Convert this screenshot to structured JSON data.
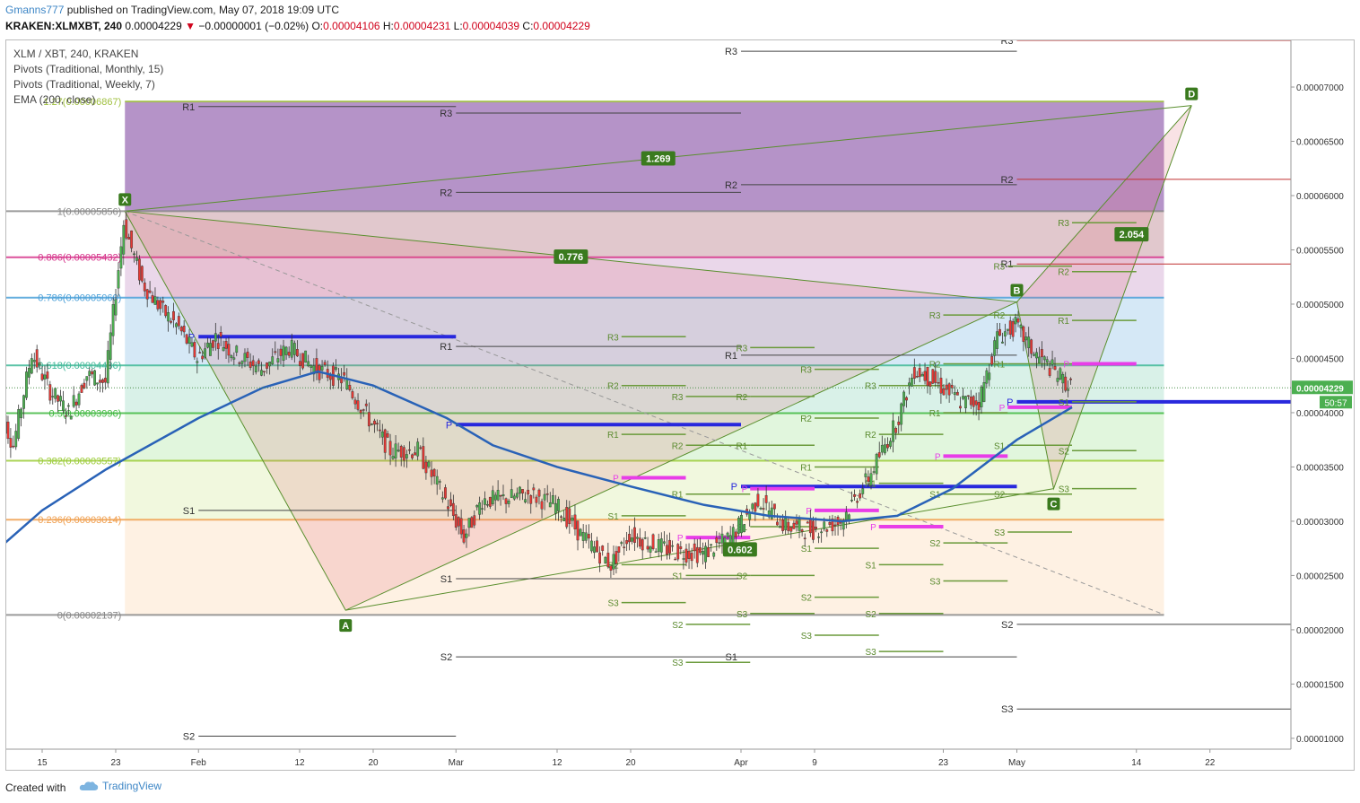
{
  "header": {
    "user": "Gmanns777",
    "published_text": "published on TradingView.com, May 07, 2018 19:09 UTC",
    "symbol": "KRAKEN:XLMXBT, 240",
    "last": "0.00004229",
    "change": "−0.00000001 (−0.02%)",
    "o_label": "O:",
    "o_value": "0.00004106",
    "h_label": "H:",
    "h_value": "0.00004231",
    "l_label": "L:",
    "l_value": "0.00004039",
    "c_label": "C:",
    "c_value": "0.00004229"
  },
  "legend": {
    "line1": "XLM / XBT, 240, KRAKEN",
    "line2": "Pivots (Traditional, Monthly, 15)",
    "line3": "Pivots (Traditional, Weekly, 7)",
    "line4": "EMA (200, close)"
  },
  "footer": {
    "created_with": "Created with",
    "brand": "TradingView"
  },
  "colors": {
    "up": "#4caf50",
    "down": "#e53935",
    "ema": "#2962b7",
    "pattern": "#5a8f2e",
    "axis_text": "#333333",
    "monthly_pivot": "#2020dd",
    "weekly_pivot": "#e83de8"
  },
  "chart_data": {
    "type": "candlestick",
    "title": "XLM / XBT, 240, KRAKEN",
    "ylim": [
      9e-06,
      7.43e-05
    ],
    "y_ticks": [
      "0.00007000",
      "0.00006500",
      "0.00006000",
      "0.00005500",
      "0.00005000",
      "0.00004500",
      "0.00004000",
      "0.00003500",
      "0.00003000",
      "0.00002500",
      "0.00002000",
      "0.00001500",
      "0.00001000"
    ],
    "x_ticks": [
      "15",
      "23",
      "Feb",
      "12",
      "20",
      "Mar",
      "12",
      "20",
      "Apr",
      "9",
      "23",
      "May",
      "14",
      "22"
    ],
    "price_marker": "0.00004229",
    "countdown": "50:57",
    "fib_levels": [
      {
        "label": "1(0.00005856)",
        "value": 5.856e-05
      },
      {
        "label": "0.886(0.00005432)",
        "value": 5.432e-05
      },
      {
        "label": "0.786(0.00005060)",
        "value": 5.06e-05
      },
      {
        "label": "0.618(0.00004436)",
        "value": 4.436e-05
      },
      {
        "label": "0.5(0.00003996)",
        "value": 3.996e-05
      },
      {
        "label": "0.382(0.00003557)",
        "value": 3.557e-05
      },
      {
        "label": "0.236(0.00003014)",
        "value": 3.014e-05
      },
      {
        "label": "0(0.00002137)",
        "value": 2.137e-05
      },
      {
        "label": "1.27(0.00006867)",
        "value": 6.867e-05
      }
    ],
    "harmonic_points": [
      {
        "label": "X",
        "date": "Jan 24",
        "value": 5.856e-05
      },
      {
        "label": "A",
        "date": "Feb 17",
        "value": 2.18e-05
      },
      {
        "label": "B",
        "date": "May 1",
        "value": 5.02e-05
      },
      {
        "label": "C",
        "date": "May 5",
        "value": 3.3e-05
      },
      {
        "label": "D",
        "date": "May 20",
        "value": 6.83e-05
      }
    ],
    "ratios": [
      "1.269",
      "0.776",
      "2.054",
      "0.602"
    ],
    "monthly_pivots": [
      {
        "labels": [
          "R1",
          "P",
          "S1",
          "S2"
        ],
        "values": [
          6.82e-05,
          4.7e-05,
          3.1e-05,
          1.02e-05
        ]
      },
      {
        "labels": [
          "R3",
          "R2",
          "R1",
          "P",
          "S1",
          "S2"
        ],
        "values": [
          6.76e-05,
          6.03e-05,
          4.61e-05,
          3.89e-05,
          2.47e-05,
          1.75e-05
        ]
      },
      {
        "labels": [
          "R3",
          "R2",
          "R1",
          "P",
          "S1"
        ],
        "values": [
          7.33e-05,
          6.1e-05,
          4.53e-05,
          3.32e-05,
          1.75e-05
        ]
      },
      {
        "labels": [
          "R3",
          "R2",
          "R1",
          "P",
          "S2",
          "S3"
        ],
        "values": [
          7.43e-05,
          6.15e-05,
          5.37e-05,
          4.1e-05,
          2.05e-05,
          1.27e-05
        ]
      }
    ],
    "weekly_pivot_labels": [
      "R3",
      "R2",
      "R1",
      "P",
      "S1",
      "S2",
      "S3"
    ],
    "series": [
      {
        "name": "XLM/XBT",
        "points": [
          [
            "Jan 10",
            4.13e-05
          ],
          [
            "Jan 12",
            3.7e-05
          ],
          [
            "Jan 14",
            4.55e-05
          ],
          [
            "Jan 16",
            4.2e-05
          ],
          [
            "Jan 18",
            4e-05
          ],
          [
            "Jan 20",
            4.35e-05
          ],
          [
            "Jan 22",
            4.28e-05
          ],
          [
            "Jan 24",
            5.75e-05
          ],
          [
            "Jan 26",
            5.2e-05
          ],
          [
            "Jan 28",
            4.96e-05
          ],
          [
            "Jan 30",
            4.78e-05
          ],
          [
            "Feb 1",
            4.5e-05
          ],
          [
            "Feb 3",
            4.7e-05
          ],
          [
            "Feb 5",
            4.55e-05
          ],
          [
            "Feb 8",
            4.4e-05
          ],
          [
            "Feb 11",
            4.6e-05
          ],
          [
            "Feb 14",
            4.4e-05
          ],
          [
            "Feb 17",
            4.3e-05
          ],
          [
            "Feb 20",
            3.9e-05
          ],
          [
            "Feb 22",
            3.65e-05
          ],
          [
            "Feb 25",
            3.65e-05
          ],
          [
            "Feb 28",
            3.2e-05
          ],
          [
            "Mar 2",
            2.85e-05
          ],
          [
            "Mar 4",
            3.2e-05
          ],
          [
            "Mar 6",
            3.2e-05
          ],
          [
            "Mar 9",
            3.25e-05
          ],
          [
            "Mar 12",
            3.15e-05
          ],
          [
            "Mar 15",
            2.85e-05
          ],
          [
            "Mar 18",
            2.6e-05
          ],
          [
            "Mar 20",
            2.88e-05
          ],
          [
            "Mar 22",
            2.8e-05
          ],
          [
            "Mar 25",
            2.72e-05
          ],
          [
            "Mar 28",
            2.7e-05
          ],
          [
            "Mar 31",
            2.85e-05
          ],
          [
            "Apr 3",
            3.2e-05
          ],
          [
            "Apr 6",
            2.95e-05
          ],
          [
            "Apr 9",
            2.92e-05
          ],
          [
            "Apr 12",
            3e-05
          ],
          [
            "Apr 15",
            3.4e-05
          ],
          [
            "Apr 18",
            3.9e-05
          ],
          [
            "Apr 20",
            4.4e-05
          ],
          [
            "Apr 22",
            4.3e-05
          ],
          [
            "Apr 25",
            4.1e-05
          ],
          [
            "Apr 27",
            4.1e-05
          ],
          [
            "Apr 29",
            4.7e-05
          ],
          [
            "May 1",
            4.8e-05
          ],
          [
            "May 3",
            4.55e-05
          ],
          [
            "May 5",
            4.4e-05
          ],
          [
            "May 7",
            4.23e-05
          ]
        ]
      },
      {
        "name": "EMA (200, close)",
        "points": [
          [
            "Jan 8",
            2.58e-05
          ],
          [
            "Jan 15",
            3.1e-05
          ],
          [
            "Jan 22",
            3.48e-05
          ],
          [
            "Feb 1",
            3.95e-05
          ],
          [
            "Feb 8",
            4.23e-05
          ],
          [
            "Feb 14",
            4.38e-05
          ],
          [
            "Feb 20",
            4.25e-05
          ],
          [
            "Feb 28",
            3.95e-05
          ],
          [
            "Mar 5",
            3.7e-05
          ],
          [
            "Mar 12",
            3.5e-05
          ],
          [
            "Mar 20",
            3.32e-05
          ],
          [
            "Mar 28",
            3.15e-05
          ],
          [
            "Apr 4",
            3.05e-05
          ],
          [
            "Apr 12",
            3e-05
          ],
          [
            "Apr 18",
            3.05e-05
          ],
          [
            "Apr 24",
            3.3e-05
          ],
          [
            "May 1",
            3.75e-05
          ],
          [
            "May 7",
            4.05e-05
          ]
        ]
      }
    ]
  }
}
